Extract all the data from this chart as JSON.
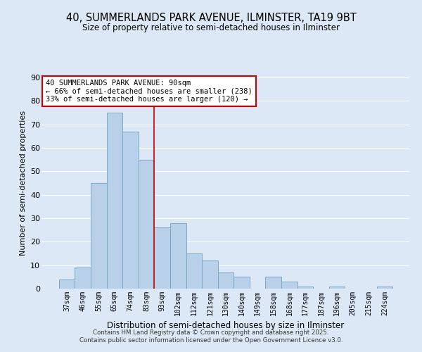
{
  "title": "40, SUMMERLANDS PARK AVENUE, ILMINSTER, TA19 9BT",
  "subtitle": "Size of property relative to semi-detached houses in Ilminster",
  "xlabel": "Distribution of semi-detached houses by size in Ilminster",
  "ylabel": "Number of semi-detached properties",
  "categories": [
    "37sqm",
    "46sqm",
    "55sqm",
    "65sqm",
    "74sqm",
    "83sqm",
    "93sqm",
    "102sqm",
    "112sqm",
    "121sqm",
    "130sqm",
    "140sqm",
    "149sqm",
    "158sqm",
    "168sqm",
    "177sqm",
    "187sqm",
    "196sqm",
    "205sqm",
    "215sqm",
    "224sqm"
  ],
  "values": [
    4,
    9,
    45,
    75,
    67,
    55,
    26,
    28,
    15,
    12,
    7,
    5,
    0,
    5,
    3,
    1,
    0,
    1,
    0,
    0,
    1
  ],
  "bar_color": "#b8d0e8",
  "bar_edge_color": "#7aaac8",
  "vline_x": 5.5,
  "vline_color": "#cc0000",
  "annotation_text": "40 SUMMERLANDS PARK AVENUE: 90sqm\n← 66% of semi-detached houses are smaller (238)\n33% of semi-detached houses are larger (120) →",
  "annotation_box_color": "white",
  "annotation_box_edge_color": "#cc0000",
  "ylim": [
    0,
    90
  ],
  "yticks": [
    0,
    10,
    20,
    30,
    40,
    50,
    60,
    70,
    80,
    90
  ],
  "background_color": "#dce8f5",
  "grid_color": "white",
  "footer_line1": "Contains HM Land Registry data © Crown copyright and database right 2025.",
  "footer_line2": "Contains public sector information licensed under the Open Government Licence v3.0."
}
